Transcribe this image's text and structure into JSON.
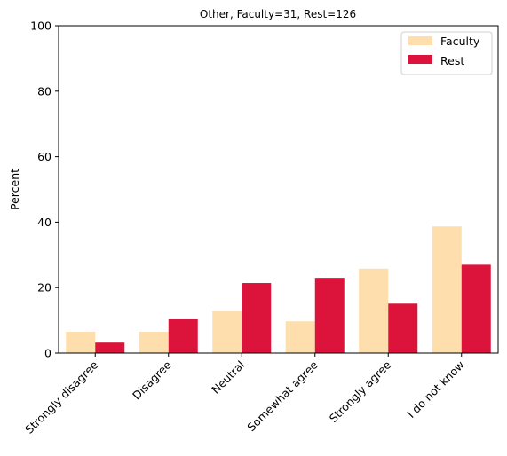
{
  "chart_data": {
    "type": "bar",
    "title": "Other, Faculty=31, Rest=126",
    "xlabel": "",
    "ylabel": "Percent",
    "ylim": [
      0,
      100
    ],
    "yticks": [
      0,
      20,
      40,
      60,
      80,
      100
    ],
    "categories": [
      "Strongly disagree",
      "Disagree",
      "Neutral",
      "Somewhat agree",
      "Strongly agree",
      "I do not know"
    ],
    "series": [
      {
        "name": "Faculty",
        "color": "#FFDEAD",
        "values": [
          6.5,
          6.5,
          12.9,
          9.7,
          25.8,
          38.7
        ]
      },
      {
        "name": "Rest",
        "color": "#DC143C",
        "values": [
          3.2,
          10.3,
          21.4,
          23.0,
          15.1,
          27.0
        ]
      }
    ],
    "grid": false,
    "legend_position": "top-right"
  }
}
